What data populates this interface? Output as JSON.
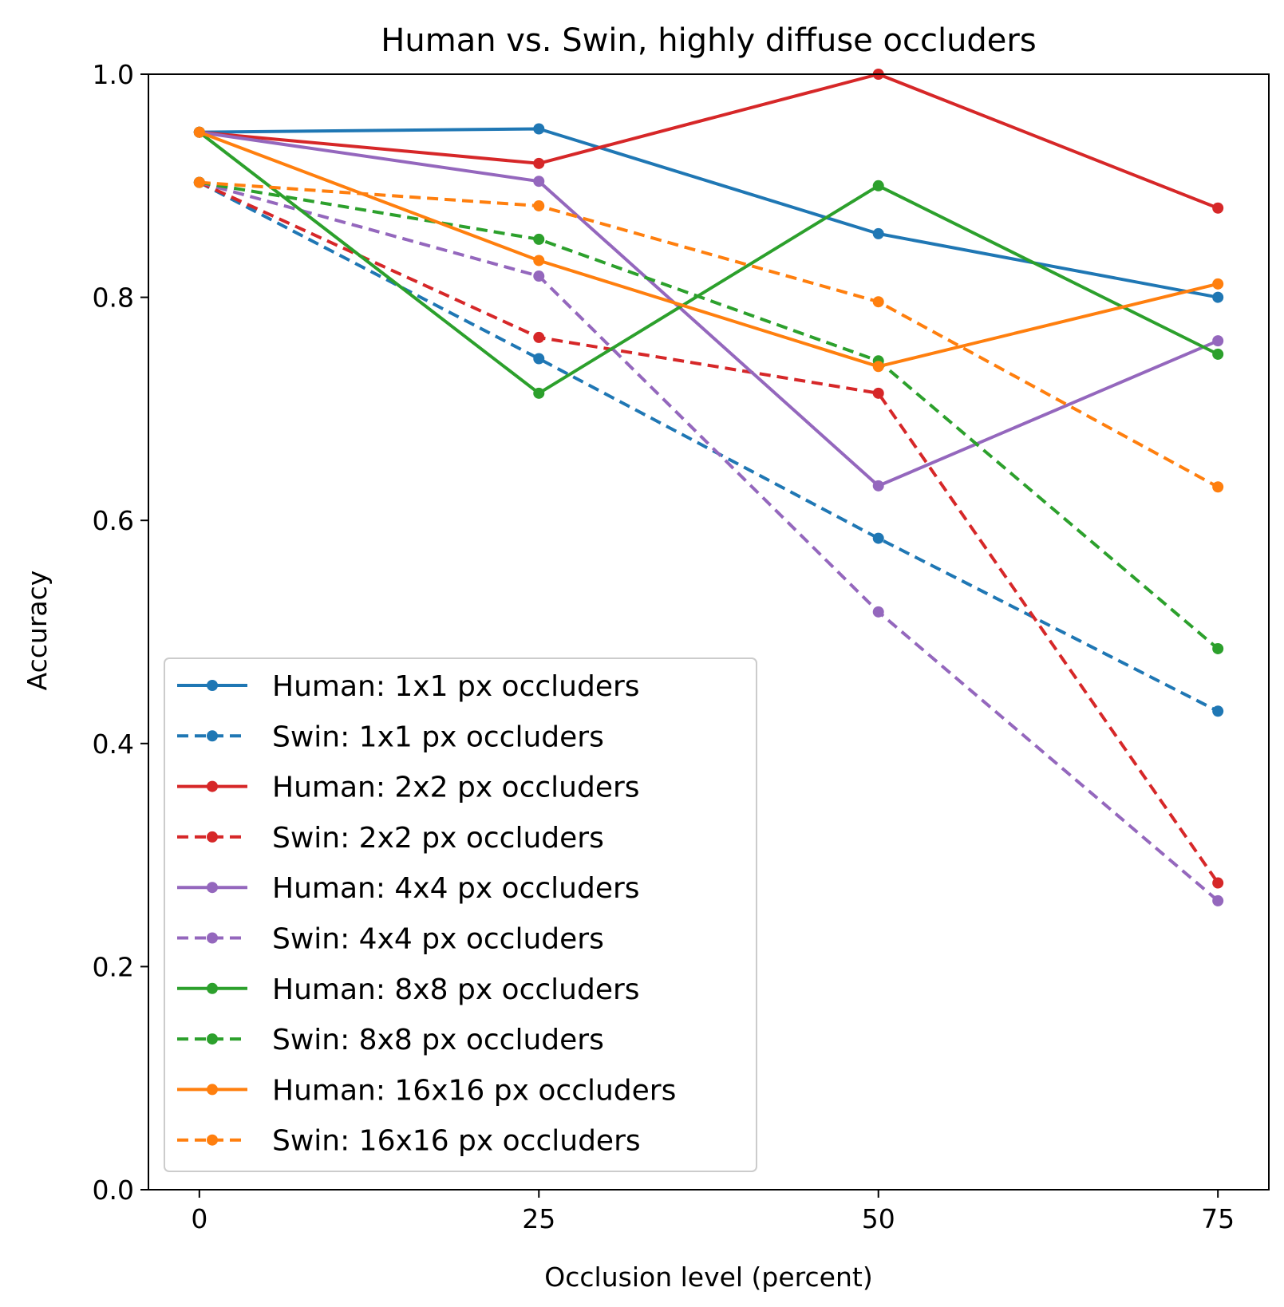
{
  "chart_data": {
    "type": "line",
    "title": "Human vs. Swin, highly diffuse occluders",
    "xlabel": "Occlusion level (percent)",
    "ylabel": "Accuracy",
    "x": [
      0,
      25,
      50,
      75
    ],
    "xlim": [
      -3.75,
      78.75
    ],
    "ylim": [
      0.0,
      1.0
    ],
    "xticks": [
      "0",
      "25",
      "50",
      "75"
    ],
    "yticks": [
      "0.0",
      "0.2",
      "0.4",
      "0.6",
      "0.8",
      "1.0"
    ],
    "grid": false,
    "legend_position": "lower-left",
    "series": [
      {
        "name": "Human: 1x1 px occluders",
        "color": "#1f77b4",
        "style": "solid",
        "values": [
          0.948,
          0.951,
          0.857,
          0.8
        ]
      },
      {
        "name": "Swin: 1x1 px occluders",
        "color": "#1f77b4",
        "style": "dashed",
        "values": [
          0.903,
          0.745,
          0.584,
          0.429
        ]
      },
      {
        "name": "Human: 2x2 px occluders",
        "color": "#d62728",
        "style": "solid",
        "values": [
          0.948,
          0.92,
          1.0,
          0.88
        ]
      },
      {
        "name": "Swin: 2x2 px occluders",
        "color": "#d62728",
        "style": "dashed",
        "values": [
          0.903,
          0.764,
          0.714,
          0.275
        ]
      },
      {
        "name": "Human: 4x4 px occluders",
        "color": "#9467bd",
        "style": "solid",
        "values": [
          0.948,
          0.904,
          0.631,
          0.761
        ]
      },
      {
        "name": "Swin: 4x4 px occluders",
        "color": "#9467bd",
        "style": "dashed",
        "values": [
          0.903,
          0.819,
          0.518,
          0.259
        ]
      },
      {
        "name": "Human: 8x8 px occluders",
        "color": "#2ca02c",
        "style": "solid",
        "values": [
          0.948,
          0.714,
          0.9,
          0.749
        ]
      },
      {
        "name": "Swin: 8x8 px occluders",
        "color": "#2ca02c",
        "style": "dashed",
        "values": [
          0.903,
          0.852,
          0.743,
          0.485
        ]
      },
      {
        "name": "Human: 16x16 px occluders",
        "color": "#ff7f0e",
        "style": "solid",
        "values": [
          0.948,
          0.833,
          0.738,
          0.812
        ]
      },
      {
        "name": "Swin: 16x16 px occluders",
        "color": "#ff7f0e",
        "style": "dashed",
        "values": [
          0.903,
          0.882,
          0.796,
          0.63
        ]
      }
    ]
  }
}
